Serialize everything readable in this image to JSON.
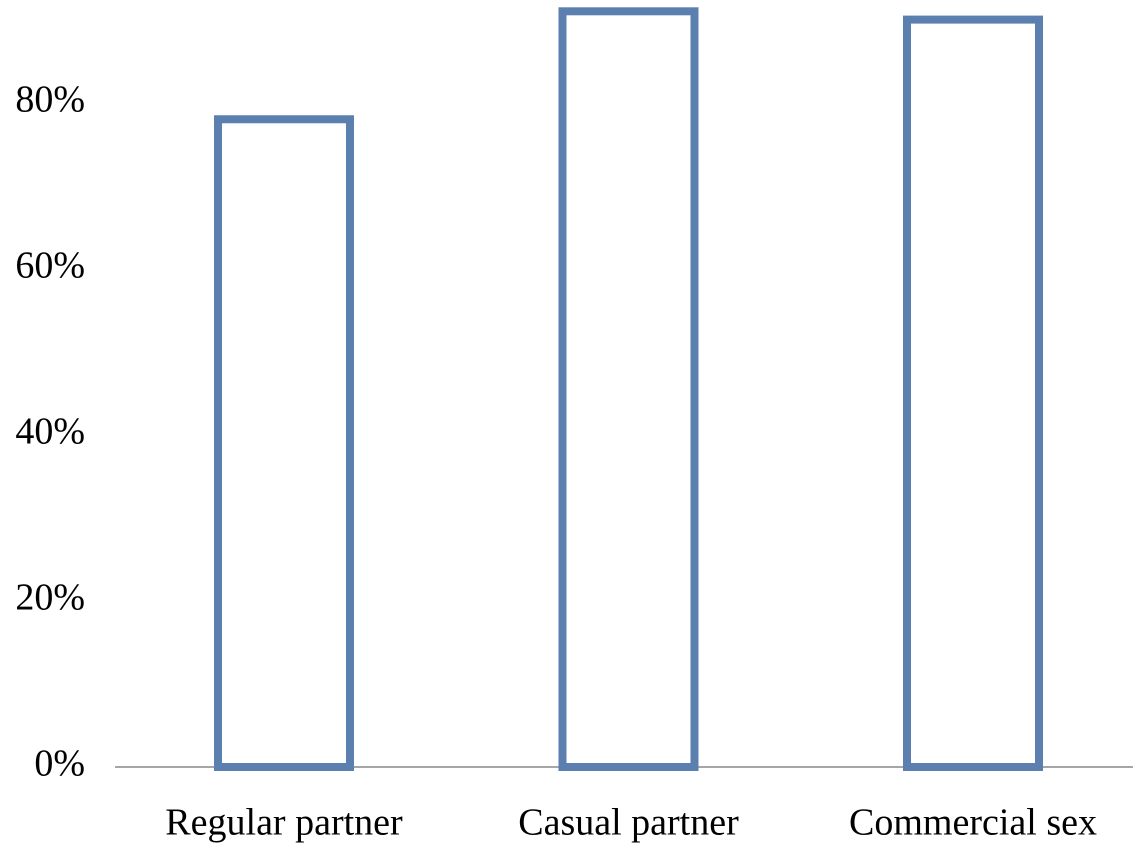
{
  "chart_data": {
    "type": "bar",
    "categories": [
      "Regular partner",
      "Casual partner",
      "Commercial sex"
    ],
    "values": [
      78,
      91,
      90
    ],
    "color": "#5b7fae",
    "ylim": [
      0,
      92
    ],
    "yticks": [
      {
        "value": 0,
        "label": "0%"
      },
      {
        "value": 20,
        "label": "20%"
      },
      {
        "value": 40,
        "label": "40%"
      },
      {
        "value": 60,
        "label": "60%"
      },
      {
        "value": 80,
        "label": "80%"
      }
    ],
    "grid": false
  }
}
